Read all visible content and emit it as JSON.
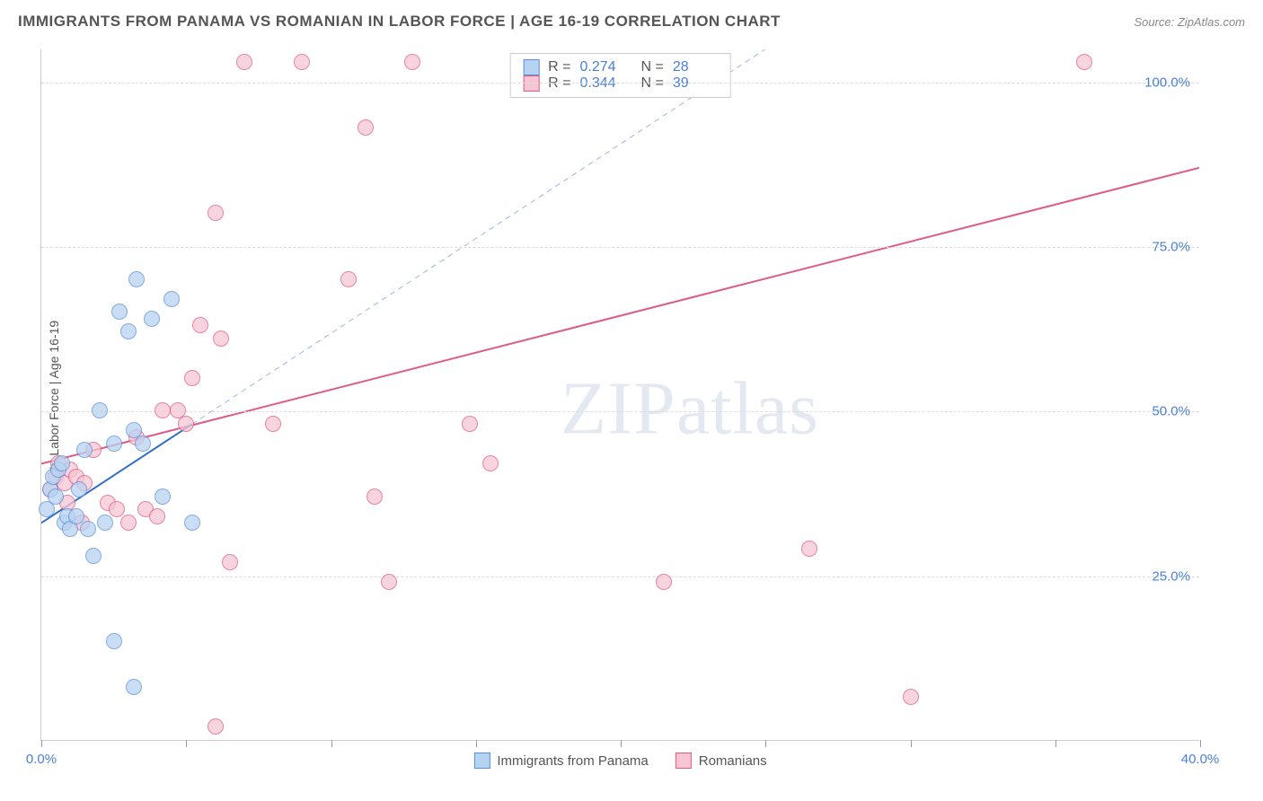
{
  "header": {
    "title": "IMMIGRANTS FROM PANAMA VS ROMANIAN IN LABOR FORCE | AGE 16-19 CORRELATION CHART",
    "source": "Source: ZipAtlas.com"
  },
  "axes": {
    "ylabel": "In Labor Force | Age 16-19",
    "xlim": [
      0,
      40
    ],
    "ylim": [
      0,
      105
    ],
    "x_ticks": [
      0,
      5,
      10,
      15,
      20,
      25,
      30,
      35,
      40
    ],
    "x_tick_labels": {
      "0": "0.0%",
      "40": "40.0%"
    },
    "y_ticks": [
      25,
      50,
      75,
      100
    ],
    "y_tick_labels": {
      "25": "25.0%",
      "50": "50.0%",
      "75": "75.0%",
      "100": "100.0%"
    },
    "grid_color": "#dddddd",
    "axis_color": "#cccccc",
    "tick_label_color": "#4a7fd6",
    "label_color": "#555555",
    "label_fontsize": 14,
    "tick_fontsize": 15
  },
  "watermark": {
    "text": "ZIPatlas"
  },
  "series": {
    "panama": {
      "label": "Immigrants from Panama",
      "fill": "#b7d3f2",
      "stroke": "#5b8fd6",
      "marker_radius": 9,
      "opacity": 0.75,
      "trend": {
        "stroke": "#2f6fc9",
        "width": 2,
        "dash": "none",
        "x0": 0,
        "y0": 33,
        "x1": 5.2,
        "y1": 48
      },
      "trend_ext": {
        "stroke": "#9bb7e0",
        "width": 1,
        "dash": "6,5",
        "x0": 5.2,
        "y0": 48,
        "x1": 25,
        "y1": 105
      },
      "points": [
        [
          0.2,
          35
        ],
        [
          0.3,
          38
        ],
        [
          0.4,
          40
        ],
        [
          0.5,
          37
        ],
        [
          0.6,
          41
        ],
        [
          0.7,
          42
        ],
        [
          0.8,
          33
        ],
        [
          0.9,
          34
        ],
        [
          1.0,
          32
        ],
        [
          1.2,
          34
        ],
        [
          1.3,
          38
        ],
        [
          1.5,
          44
        ],
        [
          1.6,
          32
        ],
        [
          1.8,
          28
        ],
        [
          2.0,
          50
        ],
        [
          2.2,
          33
        ],
        [
          2.7,
          65
        ],
        [
          3.0,
          62
        ],
        [
          3.2,
          47
        ],
        [
          3.3,
          70
        ],
        [
          3.5,
          45
        ],
        [
          3.8,
          64
        ],
        [
          4.2,
          37
        ],
        [
          4.5,
          67
        ],
        [
          5.2,
          33
        ],
        [
          2.5,
          15
        ],
        [
          3.2,
          8
        ],
        [
          2.5,
          45
        ]
      ]
    },
    "romanians": {
      "label": "Romanians",
      "fill": "#f6c6d3",
      "stroke": "#e05a88",
      "marker_radius": 9,
      "opacity": 0.75,
      "trend": {
        "stroke": "#e05a88",
        "width": 2,
        "dash": "none",
        "x0": 0,
        "y0": 42,
        "x1": 40,
        "y1": 87
      },
      "points": [
        [
          0.3,
          38
        ],
        [
          0.5,
          40
        ],
        [
          0.6,
          42
        ],
        [
          0.8,
          39
        ],
        [
          1.0,
          41
        ],
        [
          1.2,
          40
        ],
        [
          1.5,
          39
        ],
        [
          1.8,
          44
        ],
        [
          2.3,
          36
        ],
        [
          2.6,
          35
        ],
        [
          3.3,
          46
        ],
        [
          3.6,
          35
        ],
        [
          4.2,
          50
        ],
        [
          4.7,
          50
        ],
        [
          5.2,
          55
        ],
        [
          5.5,
          63
        ],
        [
          6.0,
          80
        ],
        [
          6.2,
          61
        ],
        [
          6.5,
          27
        ],
        [
          7.0,
          103
        ],
        [
          8.0,
          48
        ],
        [
          9.0,
          103
        ],
        [
          10.6,
          70
        ],
        [
          11.2,
          93
        ],
        [
          11.5,
          37
        ],
        [
          12.0,
          24
        ],
        [
          14.8,
          48
        ],
        [
          15.5,
          42
        ],
        [
          6.0,
          2
        ],
        [
          21.5,
          24
        ],
        [
          26.5,
          29
        ],
        [
          30.0,
          6.5
        ],
        [
          36.0,
          103
        ],
        [
          12.8,
          103
        ],
        [
          4.0,
          34
        ],
        [
          1.4,
          33
        ],
        [
          0.9,
          36
        ],
        [
          5.0,
          48
        ],
        [
          3.0,
          33
        ]
      ]
    }
  },
  "stats_legend": {
    "rows": [
      {
        "swatch_fill": "#b7d3f2",
        "swatch_stroke": "#5b8fd6",
        "r_label": "R  =",
        "r": "0.274",
        "n_label": "N  =",
        "n": "28"
      },
      {
        "swatch_fill": "#f6c6d3",
        "swatch_stroke": "#e05a88",
        "r_label": "R  =",
        "r": "0.344",
        "n_label": "N  =",
        "n": "39"
      }
    ]
  },
  "bottom_legend": {
    "items": [
      {
        "swatch_fill": "#b7d3f2",
        "swatch_stroke": "#5b8fd6",
        "label": "Immigrants from Panama"
      },
      {
        "swatch_fill": "#f6c6d3",
        "swatch_stroke": "#e05a88",
        "label": "Romanians"
      }
    ]
  },
  "style": {
    "background": "#ffffff",
    "title_color": "#555555",
    "title_fontsize": 17,
    "source_color": "#888888",
    "source_fontsize": 13
  }
}
